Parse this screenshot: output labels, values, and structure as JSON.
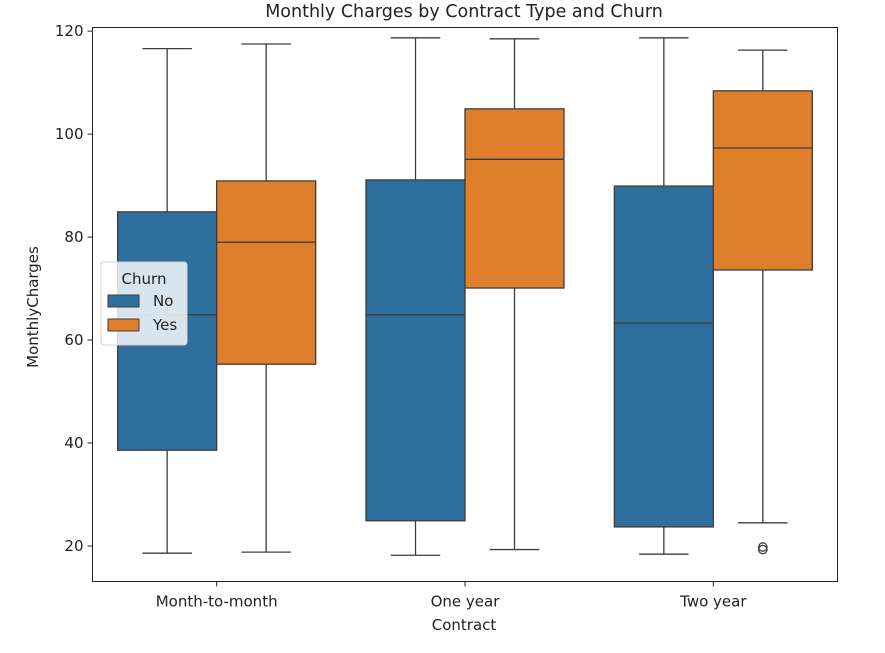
{
  "chart_data": {
    "type": "boxplot",
    "title": "Monthly Charges by Contract Type and Churn",
    "xlabel": "Contract",
    "ylabel": "MonthlyCharges",
    "categories": [
      "Month-to-month",
      "One year",
      "Two year"
    ],
    "ylim": [
      13.1,
      120.7
    ],
    "yticks": [
      20,
      40,
      60,
      80,
      100,
      120
    ],
    "grid": false,
    "legend": {
      "title": "Churn",
      "placement": "center-left"
    },
    "series": [
      {
        "name": "No",
        "color": "#2e6f9e",
        "boxes": [
          {
            "whislo": 18.6,
            "q1": 38.6,
            "med": 64.9,
            "q3": 84.9,
            "whishi": 116.6,
            "fliers": []
          },
          {
            "whislo": 18.2,
            "q1": 24.9,
            "med": 64.9,
            "q3": 91.1,
            "whishi": 118.7,
            "fliers": []
          },
          {
            "whislo": 18.4,
            "q1": 23.7,
            "med": 63.3,
            "q3": 89.9,
            "whishi": 118.7,
            "fliers": []
          }
        ]
      },
      {
        "name": "Yes",
        "color": "#e07f2b",
        "boxes": [
          {
            "whislo": 18.8,
            "q1": 55.3,
            "med": 79.0,
            "q3": 90.9,
            "whishi": 117.5,
            "fliers": []
          },
          {
            "whislo": 19.3,
            "q1": 70.1,
            "med": 95.1,
            "q3": 104.9,
            "whishi": 118.5,
            "fliers": []
          },
          {
            "whislo": 24.5,
            "q1": 73.6,
            "med": 97.3,
            "q3": 108.4,
            "whishi": 116.3,
            "fliers": [
              19.3,
              19.8
            ]
          }
        ]
      }
    ]
  }
}
